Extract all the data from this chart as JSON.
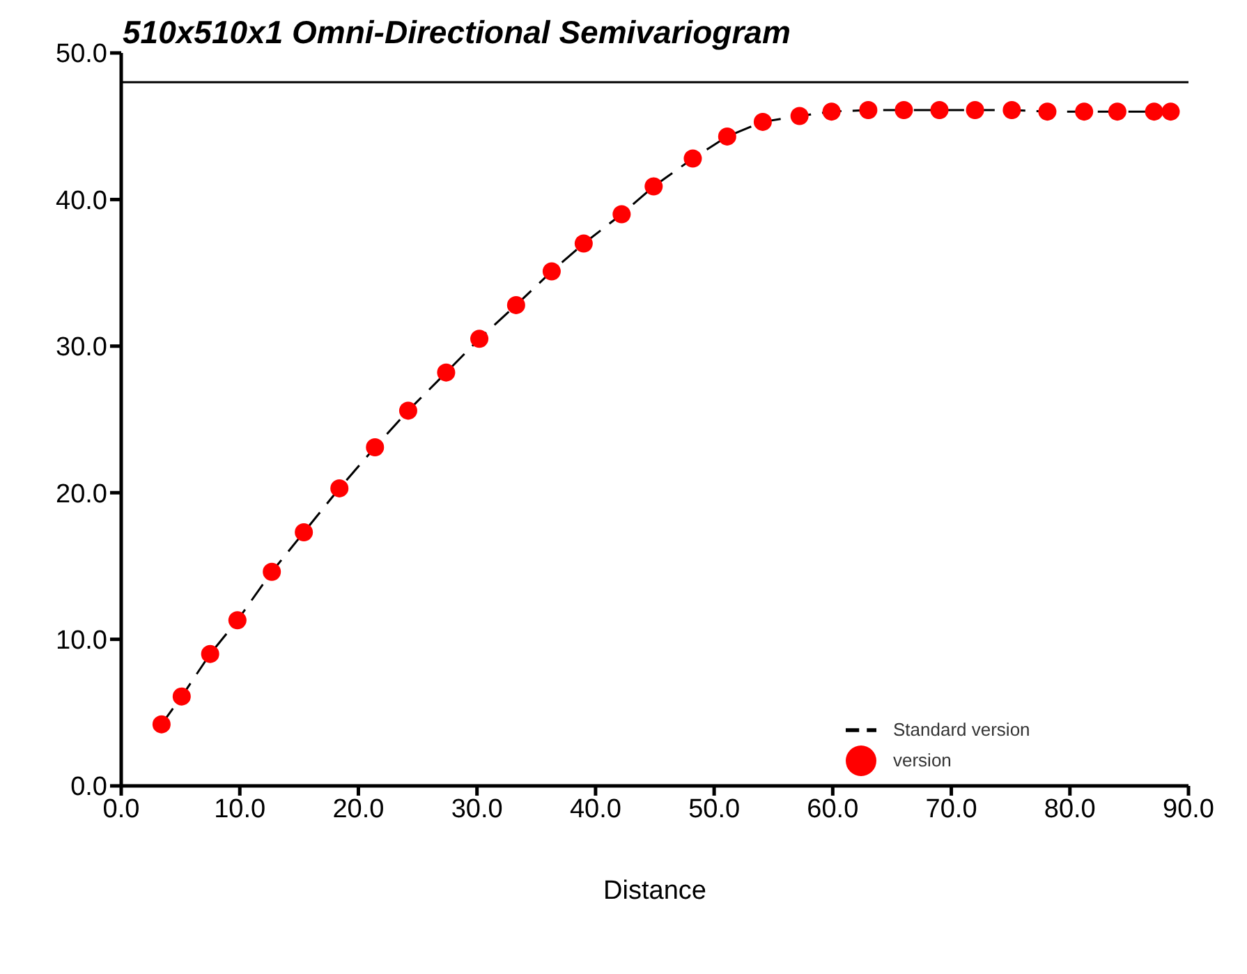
{
  "chart_data": {
    "type": "line",
    "title": "510x510x1 Omni-Directional Semivariogram",
    "xlabel": "Distance",
    "x": [
      3.4,
      5.1,
      7.5,
      9.8,
      12.7,
      15.4,
      18.4,
      21.4,
      24.2,
      27.4,
      30.2,
      33.3,
      36.3,
      39.0,
      42.2,
      44.9,
      48.2,
      51.1,
      54.1,
      57.2,
      59.9,
      63.0,
      66.0,
      69.0,
      72.0,
      75.1,
      78.1,
      81.2,
      84.0,
      87.1,
      88.5
    ],
    "series": [
      {
        "name": "Standard version",
        "color": "#000000",
        "line_style": "dashed",
        "marker": "none",
        "values": [
          4.2,
          6.1,
          9.0,
          11.3,
          14.6,
          17.3,
          20.3,
          23.1,
          25.6,
          28.2,
          30.5,
          32.8,
          35.1,
          37.0,
          39.0,
          40.9,
          42.8,
          44.3,
          45.3,
          45.7,
          46.0,
          46.1,
          46.1,
          46.1,
          46.1,
          46.1,
          46.0,
          46.0,
          46.0,
          46.0,
          46.0
        ]
      },
      {
        "name": "version",
        "type": "scatter",
        "color": "#ff0000",
        "marker": "circle",
        "values": [
          4.2,
          6.1,
          9.0,
          11.3,
          14.6,
          17.3,
          20.3,
          23.1,
          25.6,
          28.2,
          30.5,
          32.8,
          35.1,
          37.0,
          39.0,
          40.9,
          42.8,
          44.3,
          45.3,
          45.7,
          46.0,
          46.1,
          46.1,
          46.1,
          46.1,
          46.1,
          46.0,
          46.0,
          46.0,
          46.0,
          46.0
        ]
      }
    ],
    "xlim": [
      0,
      90
    ],
    "xticks": [
      {
        "value": 0,
        "label": "0.0"
      },
      {
        "value": 10,
        "label": "10.0"
      },
      {
        "value": 20,
        "label": "20.0"
      },
      {
        "value": 30,
        "label": "30.0"
      },
      {
        "value": 40,
        "label": "40.0"
      },
      {
        "value": 50,
        "label": "50.0"
      },
      {
        "value": 60,
        "label": "60.0"
      },
      {
        "value": 70,
        "label": "70.0"
      },
      {
        "value": 80,
        "label": "80.0"
      },
      {
        "value": 90,
        "label": "90.0"
      }
    ],
    "ylim": [
      0,
      50
    ],
    "yticks": [
      {
        "value": 0,
        "label": "0.0"
      },
      {
        "value": 10,
        "label": "10.0"
      },
      {
        "value": 20,
        "label": "20.0"
      },
      {
        "value": 30,
        "label": "30.0"
      },
      {
        "value": 40,
        "label": "40.0"
      },
      {
        "value": 50,
        "label": "50.0"
      }
    ],
    "ref_lines": [
      {
        "axis": "y",
        "value": 48,
        "color": "#000000"
      }
    ],
    "grid": false,
    "legend": "bottom right"
  }
}
